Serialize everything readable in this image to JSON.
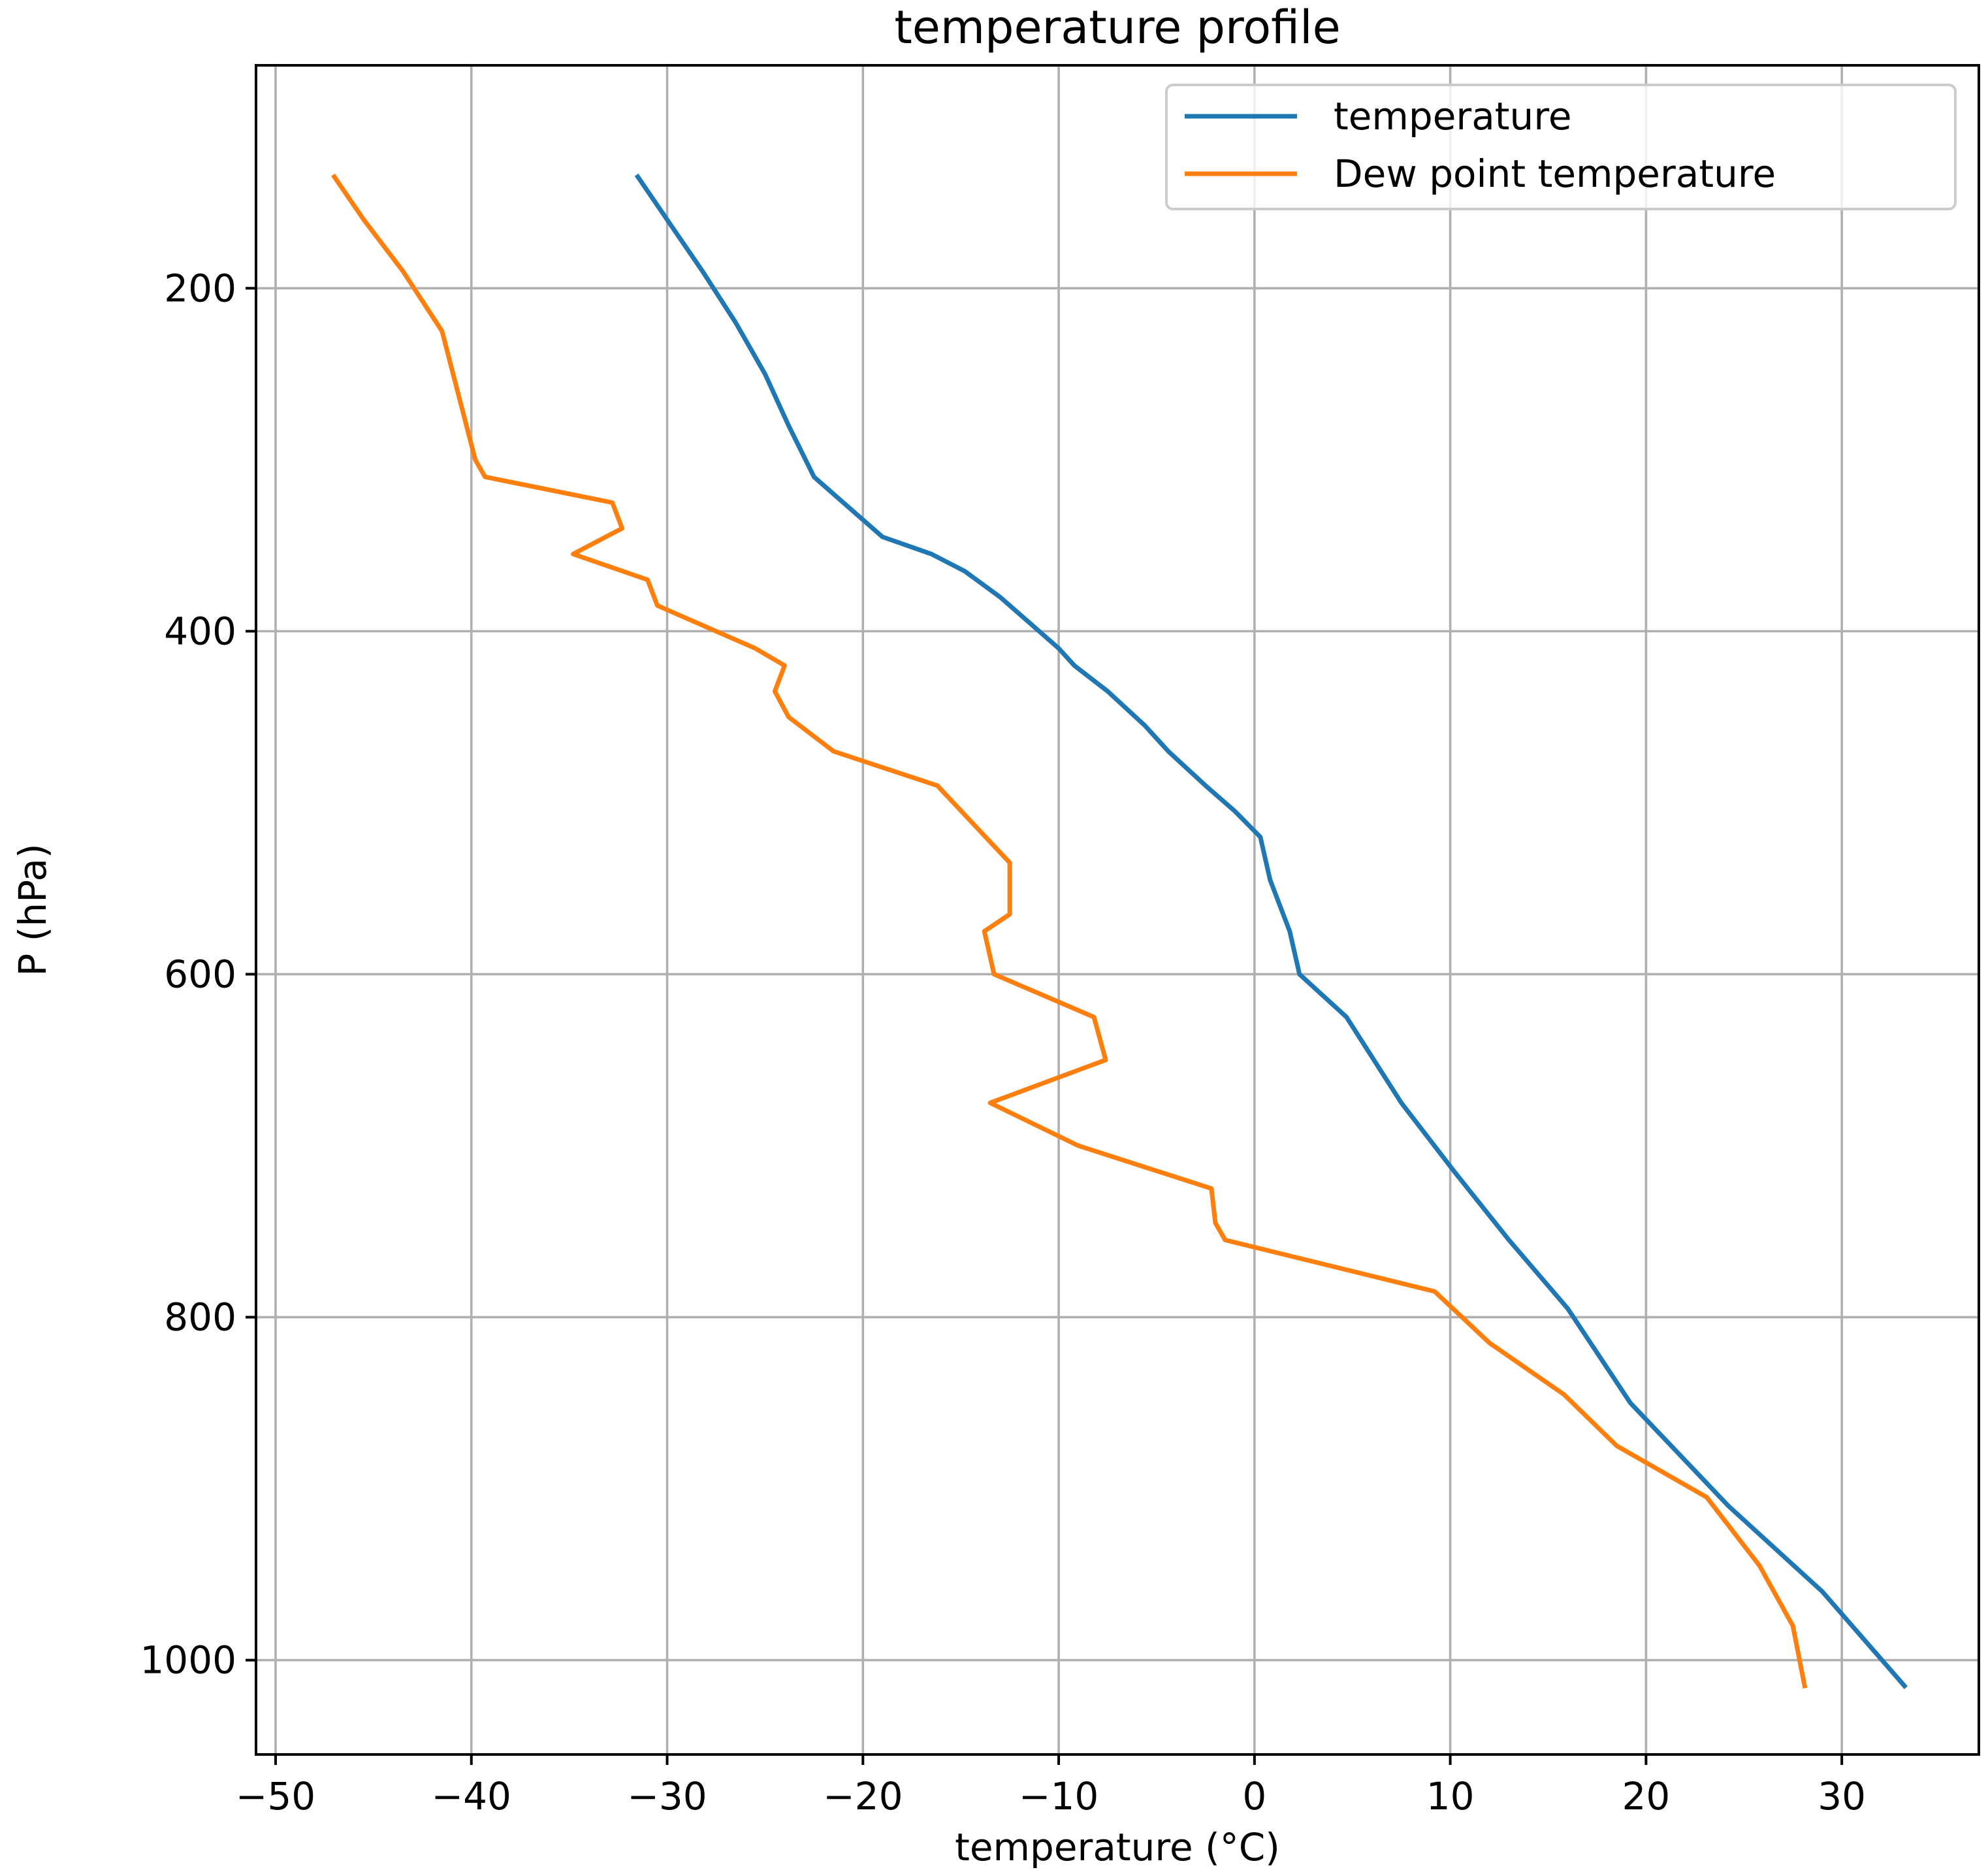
{
  "chart_data": {
    "type": "line",
    "title": "temperature profile",
    "xlabel": "temperature (°C)",
    "ylabel": "P (hPa)",
    "xlim": [
      -51,
      37
    ],
    "ylim": [
      1055,
      70
    ],
    "y_inverted": true,
    "grid": true,
    "legend_position": "top-right",
    "x_ticks": [
      -50,
      -40,
      -30,
      -20,
      -10,
      0,
      10,
      20,
      30
    ],
    "x_tick_labels": [
      "−50",
      "−40",
      "−30",
      "−20",
      "−10",
      "0",
      "10",
      "20",
      "30"
    ],
    "y_ticks": [
      200,
      400,
      600,
      800,
      1000
    ],
    "y_tick_labels": [
      "200",
      "400",
      "600",
      "800",
      "1000"
    ],
    "series": [
      {
        "name": "temperature",
        "color": "#1f77b4",
        "x": [
          -31.5,
          -30.0,
          -28.2,
          -26.5,
          -25.0,
          -23.8,
          -22.5,
          -21.0,
          -19.0,
          -16.5,
          -14.8,
          -13.0,
          -11.5,
          -10.0,
          -9.2,
          -7.5,
          -5.6,
          -4.4,
          -2.5,
          -1.0,
          0.3,
          0.8,
          1.8,
          2.3,
          4.7,
          7.5,
          10.2,
          13.0,
          16.0,
          19.2,
          24.2,
          29.0,
          33.2
        ],
        "y": [
          135,
          160,
          190,
          220,
          250,
          280,
          310,
          325,
          345,
          355,
          365,
          380,
          395,
          410,
          420,
          435,
          455,
          470,
          490,
          505,
          520,
          545,
          575,
          600,
          625,
          675,
          715,
          755,
          795,
          850,
          910,
          960,
          1015
        ]
      },
      {
        "name": "Dew point temperature",
        "color": "#ff7f0e",
        "x": [
          -47.0,
          -45.5,
          -43.5,
          -41.5,
          -39.8,
          -39.3,
          -32.8,
          -32.3,
          -34.8,
          -31.0,
          -30.5,
          -25.5,
          -24.0,
          -24.5,
          -23.8,
          -21.5,
          -16.2,
          -12.5,
          -12.5,
          -13.8,
          -13.3,
          -8.2,
          -7.6,
          -13.5,
          -9.0,
          -2.2,
          -2.0,
          -1.5,
          9.2,
          12.0,
          15.8,
          18.5,
          23.1,
          25.8,
          27.5,
          28.1
        ],
        "y": [
          135,
          160,
          190,
          225,
          300,
          310,
          325,
          340,
          355,
          370,
          385,
          410,
          420,
          435,
          450,
          470,
          490,
          535,
          565,
          575,
          600,
          625,
          650,
          675,
          700,
          725,
          745,
          755,
          785,
          815,
          845,
          875,
          905,
          945,
          980,
          1015
        ]
      }
    ]
  }
}
